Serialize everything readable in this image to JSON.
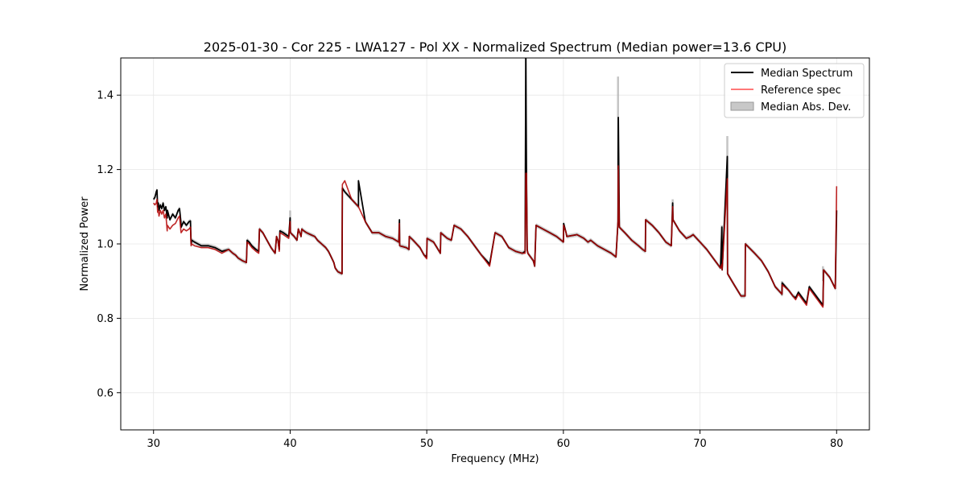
{
  "chart_data": {
    "type": "line",
    "title": "2025-01-30 - Cor 225 - LWA127 - Pol XX - Normalized Spectrum (Median power=13.6 CPU)",
    "xlabel": "Frequency (MHz)",
    "ylabel": "Normalized Power",
    "xlim": [
      27.6,
      82.4
    ],
    "ylim": [
      0.5,
      1.5
    ],
    "xticks": [
      30,
      40,
      50,
      60,
      70,
      80
    ],
    "yticks": [
      0.6,
      0.8,
      1.0,
      1.2,
      1.4
    ],
    "xtick_labels": [
      "30",
      "40",
      "50",
      "60",
      "70",
      "80"
    ],
    "ytick_labels": [
      "0.6",
      "0.8",
      "1.0",
      "1.2",
      "1.4"
    ],
    "grid": true,
    "legend_position": "top-right",
    "legend": [
      "Median Spectrum",
      "Reference spec",
      "Median Abs. Dev."
    ],
    "colors": {
      "median": "#000000",
      "reference": "#ff0000",
      "mad": "#b0b0b0",
      "overlap": "#8b0000",
      "grid": "#e6e6e6"
    },
    "series": [
      {
        "name": "Median Spectrum",
        "x": [
          30.0,
          30.1,
          30.2,
          30.25,
          30.3,
          30.35,
          30.4,
          30.5,
          30.6,
          30.7,
          30.8,
          30.9,
          31.0,
          31.02,
          31.2,
          31.4,
          31.6,
          31.8,
          31.9,
          32.0,
          32.02,
          32.2,
          32.4,
          32.6,
          32.7,
          32.75,
          32.8,
          33.0,
          33.5,
          34.0,
          34.5,
          35.0,
          35.5,
          35.8,
          36.0,
          36.2,
          36.5,
          36.8,
          36.85,
          37.0,
          37.2,
          37.5,
          37.7,
          37.75,
          38.0,
          38.3,
          38.6,
          38.9,
          39.0,
          39.1,
          39.2,
          39.25,
          39.5,
          39.9,
          40.0,
          40.02,
          40.3,
          40.5,
          40.6,
          40.8,
          40.85,
          41.0,
          41.2,
          41.5,
          41.8,
          42.0,
          42.3,
          42.6,
          42.8,
          43.0,
          43.2,
          43.3,
          43.5,
          43.8,
          43.82,
          44.0,
          44.5,
          45.0,
          45.0,
          45.5,
          46.0,
          46.5,
          47.0,
          47.5,
          47.95,
          48.0,
          48.02,
          48.5,
          48.7,
          48.72,
          49.0,
          49.5,
          49.8,
          50.0,
          50.02,
          50.5,
          51.0,
          51.02,
          51.5,
          51.8,
          52.0,
          52.5,
          53.0,
          53.5,
          54.0,
          54.5,
          54.6,
          55.0,
          55.5,
          56.0,
          56.5,
          57.0,
          57.2,
          57.25,
          57.3,
          57.35,
          57.4,
          57.8,
          57.9,
          58.0,
          58.5,
          59.0,
          59.5,
          60.0,
          60.02,
          60.2,
          60.25,
          61.0,
          61.5,
          61.8,
          62.0,
          62.5,
          63.0,
          63.5,
          63.85,
          64.0,
          64.02,
          64.1,
          64.5,
          65.0,
          65.5,
          65.8,
          66.0,
          66.02,
          66.5,
          67.0,
          67.5,
          67.9,
          68.0,
          68.02,
          68.5,
          69.0,
          69.3,
          69.5,
          70.0,
          70.5,
          71.0,
          71.5,
          71.6,
          71.62,
          72.0,
          72.02,
          72.5,
          73.0,
          73.3,
          73.32,
          74.0,
          74.5,
          75.0,
          75.5,
          76.0,
          76.02,
          76.5,
          76.8,
          77.0,
          77.2,
          77.5,
          77.8,
          78.0,
          78.5,
          79.0,
          79.05,
          79.5,
          79.9,
          80.0
        ],
        "y": [
          1.12,
          1.125,
          1.14,
          1.145,
          1.1,
          1.11,
          1.09,
          1.105,
          1.095,
          1.11,
          1.09,
          1.1,
          1.07,
          1.09,
          1.065,
          1.08,
          1.07,
          1.09,
          1.095,
          1.06,
          1.045,
          1.06,
          1.05,
          1.06,
          1.062,
          1.0,
          1.01,
          1.005,
          0.995,
          0.995,
          0.99,
          0.98,
          0.985,
          0.975,
          0.97,
          0.962,
          0.955,
          0.95,
          1.01,
          1.005,
          0.995,
          0.985,
          0.98,
          1.04,
          1.03,
          1.01,
          0.99,
          0.975,
          1.02,
          1.01,
          0.985,
          1.035,
          1.03,
          1.02,
          1.07,
          1.03,
          1.02,
          1.01,
          1.04,
          1.02,
          1.04,
          1.035,
          1.03,
          1.025,
          1.02,
          1.01,
          1.0,
          0.99,
          0.98,
          0.965,
          0.95,
          0.935,
          0.925,
          0.92,
          1.15,
          1.14,
          1.12,
          1.1,
          1.17,
          1.06,
          1.03,
          1.03,
          1.02,
          1.015,
          1.005,
          1.065,
          0.995,
          0.99,
          0.985,
          1.02,
          1.01,
          0.99,
          0.97,
          0.965,
          1.015,
          1.005,
          0.975,
          1.03,
          1.015,
          1.01,
          1.05,
          1.04,
          1.02,
          0.995,
          0.97,
          0.95,
          0.945,
          1.03,
          1.02,
          0.99,
          0.98,
          0.975,
          0.98,
          1.5,
          1.19,
          0.985,
          0.975,
          0.955,
          0.94,
          1.05,
          1.04,
          1.03,
          1.02,
          1.005,
          1.055,
          1.03,
          1.02,
          1.025,
          1.015,
          1.005,
          1.01,
          0.995,
          0.985,
          0.975,
          0.965,
          1.06,
          1.34,
          1.045,
          1.03,
          1.01,
          0.995,
          0.985,
          0.98,
          1.065,
          1.05,
          1.03,
          1.005,
          0.995,
          1.11,
          1.065,
          1.035,
          1.015,
          1.02,
          1.025,
          1.005,
          0.985,
          0.96,
          0.935,
          1.045,
          0.93,
          1.235,
          0.92,
          0.89,
          0.86,
          0.86,
          1.0,
          0.975,
          0.955,
          0.925,
          0.885,
          0.865,
          0.895,
          0.875,
          0.86,
          0.855,
          0.87,
          0.855,
          0.84,
          0.885,
          0.86,
          0.835,
          0.93,
          0.91,
          0.88,
          1.09
        ]
      },
      {
        "name": "Reference spec",
        "x": [
          30.0,
          30.1,
          30.2,
          30.25,
          30.3,
          30.35,
          30.4,
          30.5,
          30.6,
          30.7,
          30.8,
          30.9,
          31.0,
          31.02,
          31.2,
          31.4,
          31.6,
          31.8,
          31.9,
          32.0,
          32.02,
          32.2,
          32.4,
          32.6,
          32.7,
          32.75,
          32.8,
          33.0,
          33.5,
          34.0,
          34.5,
          35.0,
          35.5,
          35.8,
          36.0,
          36.2,
          36.5,
          36.8,
          36.85,
          37.0,
          37.2,
          37.5,
          37.7,
          37.75,
          38.0,
          38.3,
          38.6,
          38.9,
          39.0,
          39.1,
          39.2,
          39.25,
          39.5,
          39.9,
          40.0,
          40.02,
          40.3,
          40.5,
          40.6,
          40.8,
          40.85,
          41.0,
          41.2,
          41.5,
          41.8,
          42.0,
          42.3,
          42.6,
          42.8,
          43.0,
          43.2,
          43.3,
          43.5,
          43.8,
          43.82,
          44.0,
          44.5,
          45.0,
          45.0,
          45.5,
          46.0,
          46.5,
          47.0,
          47.5,
          47.95,
          48.0,
          48.02,
          48.5,
          48.7,
          48.72,
          49.0,
          49.5,
          49.8,
          50.0,
          50.02,
          50.5,
          51.0,
          51.02,
          51.5,
          51.8,
          52.0,
          52.5,
          53.0,
          53.5,
          54.0,
          54.5,
          54.6,
          55.0,
          55.5,
          56.0,
          56.5,
          57.0,
          57.2,
          57.25,
          57.3,
          57.35,
          57.4,
          57.8,
          57.9,
          58.0,
          58.5,
          59.0,
          59.5,
          60.0,
          60.02,
          60.2,
          60.25,
          61.0,
          61.5,
          61.8,
          62.0,
          62.5,
          63.0,
          63.5,
          63.85,
          64.0,
          64.02,
          64.1,
          64.5,
          65.0,
          65.5,
          65.8,
          66.0,
          66.02,
          66.5,
          67.0,
          67.5,
          67.9,
          68.0,
          68.02,
          68.5,
          69.0,
          69.3,
          69.5,
          70.0,
          70.5,
          71.0,
          71.5,
          71.6,
          71.62,
          72.0,
          72.02,
          72.5,
          73.0,
          73.3,
          73.32,
          74.0,
          74.5,
          75.0,
          75.5,
          76.0,
          76.02,
          76.5,
          76.8,
          77.0,
          77.2,
          77.5,
          77.8,
          78.0,
          78.5,
          79.0,
          79.05,
          79.5,
          79.9,
          80.0
        ],
        "y": [
          1.11,
          1.105,
          1.11,
          1.12,
          1.085,
          1.09,
          1.075,
          1.09,
          1.08,
          1.09,
          1.07,
          1.08,
          1.035,
          1.05,
          1.04,
          1.05,
          1.055,
          1.07,
          1.075,
          1.035,
          1.03,
          1.04,
          1.035,
          1.04,
          1.045,
          0.995,
          1.0,
          0.995,
          0.99,
          0.99,
          0.985,
          0.975,
          0.985,
          0.975,
          0.97,
          0.962,
          0.955,
          0.95,
          1.005,
          1.0,
          0.99,
          0.98,
          0.975,
          1.04,
          1.03,
          1.01,
          0.99,
          0.975,
          1.02,
          1.01,
          0.98,
          1.03,
          1.025,
          1.015,
          1.06,
          1.03,
          1.02,
          1.01,
          1.04,
          1.02,
          1.04,
          1.035,
          1.03,
          1.025,
          1.02,
          1.01,
          1.0,
          0.99,
          0.98,
          0.965,
          0.95,
          0.935,
          0.925,
          0.92,
          1.16,
          1.17,
          1.12,
          1.1,
          1.1,
          1.06,
          1.03,
          1.03,
          1.02,
          1.015,
          1.005,
          1.055,
          0.995,
          0.99,
          0.985,
          1.02,
          1.01,
          0.99,
          0.97,
          0.96,
          1.015,
          1.005,
          0.975,
          1.03,
          1.015,
          1.01,
          1.05,
          1.04,
          1.02,
          0.995,
          0.97,
          0.945,
          0.94,
          1.03,
          1.02,
          0.99,
          0.98,
          0.975,
          0.975,
          1.19,
          1.19,
          0.985,
          0.975,
          0.955,
          0.94,
          1.05,
          1.04,
          1.03,
          1.02,
          1.005,
          1.05,
          1.03,
          1.02,
          1.025,
          1.015,
          1.005,
          1.01,
          0.995,
          0.985,
          0.975,
          0.965,
          1.06,
          1.21,
          1.045,
          1.03,
          1.01,
          0.995,
          0.985,
          0.98,
          1.065,
          1.05,
          1.03,
          1.005,
          0.995,
          1.1,
          1.065,
          1.035,
          1.015,
          1.02,
          1.025,
          1.005,
          0.985,
          0.96,
          0.935,
          0.945,
          0.93,
          1.175,
          0.92,
          0.89,
          0.86,
          0.86,
          1.0,
          0.975,
          0.955,
          0.925,
          0.885,
          0.865,
          0.89,
          0.875,
          0.86,
          0.85,
          0.865,
          0.85,
          0.835,
          0.88,
          0.855,
          0.83,
          0.93,
          0.91,
          0.88,
          1.155
        ]
      }
    ],
    "mad_spikes": [
      {
        "x": 40.0,
        "y": [
          1.04,
          1.09
        ]
      },
      {
        "x": 57.25,
        "y": [
          1.2,
          1.5
        ]
      },
      {
        "x": 64.0,
        "y": [
          1.2,
          1.45
        ]
      },
      {
        "x": 68.0,
        "y": [
          1.06,
          1.12
        ]
      },
      {
        "x": 71.6,
        "y": [
          0.94,
          1.05
        ]
      },
      {
        "x": 72.0,
        "y": [
          1.18,
          1.29
        ]
      },
      {
        "x": 76.0,
        "y": [
          0.86,
          0.9
        ]
      },
      {
        "x": 79.0,
        "y": [
          0.9,
          0.94
        ]
      }
    ]
  }
}
